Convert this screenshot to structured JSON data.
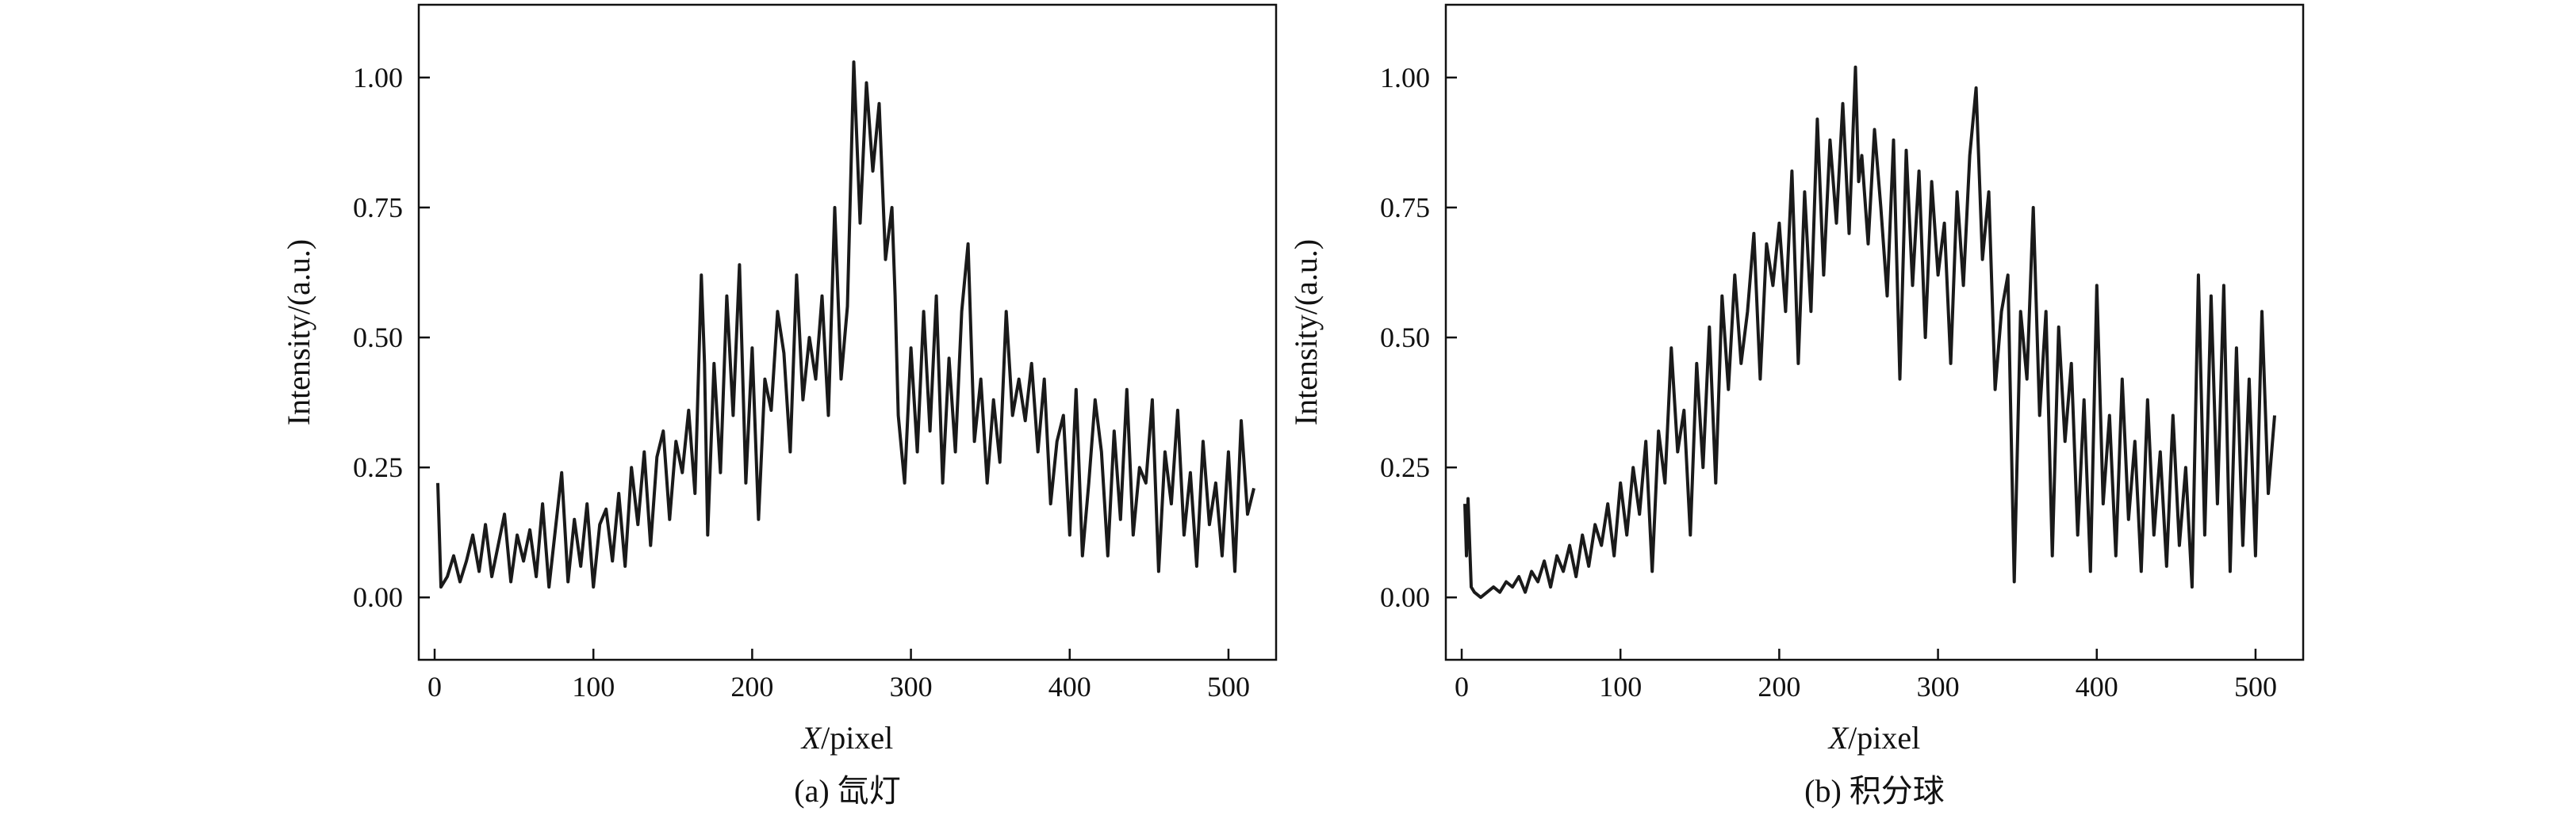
{
  "figure": {
    "panels": [
      "(a) 氙灯",
      "(b) 积分球"
    ]
  },
  "chart_data": [
    {
      "type": "line",
      "caption": "(a) 氙灯",
      "xlabel_italic": "X",
      "xlabel_rest": "/pixel",
      "ylabel": "Intensity/(a.u.)",
      "xlim": [
        -10,
        530
      ],
      "ylim": [
        -0.12,
        1.14
      ],
      "xticks": [
        0,
        100,
        200,
        300,
        400,
        500
      ],
      "yticks": [
        0.0,
        0.25,
        0.5,
        0.75,
        1.0
      ],
      "xtick_labels": [
        "0",
        "100",
        "200",
        "300",
        "400",
        "500"
      ],
      "ytick_labels": [
        "0.00",
        "0.25",
        "0.50",
        "0.75",
        "1.00"
      ],
      "grid": false,
      "series": [
        {
          "color": "#1a1a1a",
          "x": [
            2,
            4,
            8,
            12,
            16,
            20,
            24,
            28,
            32,
            36,
            40,
            44,
            48,
            52,
            56,
            60,
            64,
            68,
            72,
            76,
            80,
            84,
            88,
            92,
            96,
            100,
            104,
            108,
            112,
            116,
            120,
            124,
            128,
            132,
            136,
            140,
            144,
            148,
            152,
            156,
            160,
            164,
            168,
            170,
            172,
            176,
            180,
            184,
            188,
            192,
            196,
            200,
            204,
            208,
            212,
            216,
            220,
            224,
            228,
            232,
            236,
            240,
            244,
            248,
            252,
            256,
            260,
            264,
            268,
            272,
            276,
            280,
            284,
            288,
            290,
            292,
            296,
            300,
            304,
            308,
            312,
            316,
            320,
            324,
            328,
            332,
            336,
            340,
            344,
            348,
            352,
            356,
            360,
            364,
            368,
            372,
            376,
            380,
            384,
            388,
            392,
            396,
            400,
            404,
            408,
            412,
            416,
            420,
            424,
            428,
            432,
            436,
            440,
            444,
            448,
            452,
            456,
            460,
            464,
            468,
            472,
            476,
            480,
            484,
            488,
            492,
            496,
            500,
            504,
            508,
            512,
            516
          ],
          "y": [
            0.22,
            0.02,
            0.04,
            0.08,
            0.03,
            0.07,
            0.12,
            0.05,
            0.14,
            0.04,
            0.1,
            0.16,
            0.03,
            0.12,
            0.07,
            0.13,
            0.04,
            0.18,
            0.02,
            0.13,
            0.24,
            0.03,
            0.15,
            0.06,
            0.18,
            0.02,
            0.14,
            0.17,
            0.07,
            0.2,
            0.06,
            0.25,
            0.14,
            0.28,
            0.1,
            0.27,
            0.32,
            0.15,
            0.3,
            0.24,
            0.36,
            0.2,
            0.62,
            0.45,
            0.12,
            0.45,
            0.24,
            0.58,
            0.35,
            0.64,
            0.22,
            0.48,
            0.15,
            0.42,
            0.36,
            0.55,
            0.47,
            0.28,
            0.62,
            0.38,
            0.5,
            0.42,
            0.58,
            0.35,
            0.75,
            0.42,
            0.56,
            1.03,
            0.72,
            0.99,
            0.82,
            0.95,
            0.65,
            0.75,
            0.58,
            0.35,
            0.22,
            0.48,
            0.28,
            0.55,
            0.32,
            0.58,
            0.22,
            0.46,
            0.28,
            0.55,
            0.68,
            0.3,
            0.42,
            0.22,
            0.38,
            0.26,
            0.55,
            0.35,
            0.42,
            0.34,
            0.45,
            0.28,
            0.42,
            0.18,
            0.3,
            0.35,
            0.12,
            0.4,
            0.08,
            0.22,
            0.38,
            0.28,
            0.08,
            0.32,
            0.15,
            0.4,
            0.12,
            0.25,
            0.22,
            0.38,
            0.05,
            0.28,
            0.18,
            0.36,
            0.12,
            0.24,
            0.06,
            0.3,
            0.14,
            0.22,
            0.08,
            0.28,
            0.05,
            0.34,
            0.16,
            0.21
          ]
        }
      ]
    },
    {
      "type": "line",
      "caption": "(b) 积分球",
      "xlabel_italic": "X",
      "xlabel_rest": "/pixel",
      "ylabel": "Intensity/(a.u.)",
      "xlim": [
        -10,
        530
      ],
      "ylim": [
        -0.12,
        1.14
      ],
      "xticks": [
        0,
        100,
        200,
        300,
        400,
        500
      ],
      "yticks": [
        0.0,
        0.25,
        0.5,
        0.75,
        1.0
      ],
      "xtick_labels": [
        "0",
        "100",
        "200",
        "300",
        "400",
        "500"
      ],
      "ytick_labels": [
        "0.00",
        "0.25",
        "0.50",
        "0.75",
        "1.00"
      ],
      "grid": false,
      "series": [
        {
          "color": "#1a1a1a",
          "x": [
            2,
            3,
            4,
            6,
            8,
            12,
            16,
            20,
            24,
            28,
            32,
            36,
            40,
            44,
            48,
            52,
            56,
            60,
            64,
            68,
            72,
            76,
            80,
            84,
            88,
            92,
            96,
            100,
            104,
            108,
            112,
            116,
            120,
            124,
            128,
            132,
            136,
            140,
            144,
            148,
            152,
            156,
            160,
            164,
            168,
            172,
            176,
            180,
            184,
            188,
            192,
            196,
            200,
            204,
            208,
            212,
            216,
            220,
            224,
            228,
            232,
            236,
            240,
            244,
            248,
            250,
            252,
            256,
            260,
            264,
            268,
            272,
            276,
            280,
            284,
            288,
            292,
            296,
            300,
            304,
            308,
            312,
            316,
            320,
            324,
            328,
            332,
            336,
            340,
            344,
            348,
            352,
            356,
            360,
            364,
            368,
            372,
            376,
            380,
            384,
            388,
            392,
            396,
            400,
            404,
            408,
            412,
            416,
            420,
            424,
            428,
            432,
            436,
            440,
            444,
            448,
            452,
            456,
            460,
            464,
            468,
            472,
            476,
            480,
            484,
            488,
            492,
            496,
            500,
            504,
            508,
            512
          ],
          "y": [
            0.18,
            0.08,
            0.19,
            0.02,
            0.01,
            0.0,
            0.01,
            0.02,
            0.01,
            0.03,
            0.02,
            0.04,
            0.01,
            0.05,
            0.03,
            0.07,
            0.02,
            0.08,
            0.05,
            0.1,
            0.04,
            0.12,
            0.06,
            0.14,
            0.1,
            0.18,
            0.08,
            0.22,
            0.12,
            0.25,
            0.16,
            0.3,
            0.05,
            0.32,
            0.22,
            0.48,
            0.28,
            0.36,
            0.12,
            0.45,
            0.25,
            0.52,
            0.22,
            0.58,
            0.4,
            0.62,
            0.45,
            0.55,
            0.7,
            0.42,
            0.68,
            0.6,
            0.72,
            0.55,
            0.82,
            0.45,
            0.78,
            0.55,
            0.92,
            0.62,
            0.88,
            0.72,
            0.95,
            0.7,
            1.02,
            0.8,
            0.85,
            0.68,
            0.9,
            0.75,
            0.58,
            0.88,
            0.42,
            0.86,
            0.6,
            0.82,
            0.5,
            0.8,
            0.62,
            0.72,
            0.45,
            0.78,
            0.6,
            0.85,
            0.98,
            0.65,
            0.78,
            0.4,
            0.55,
            0.62,
            0.03,
            0.55,
            0.42,
            0.75,
            0.35,
            0.55,
            0.08,
            0.52,
            0.3,
            0.45,
            0.12,
            0.38,
            0.05,
            0.6,
            0.18,
            0.35,
            0.08,
            0.42,
            0.15,
            0.3,
            0.05,
            0.38,
            0.12,
            0.28,
            0.06,
            0.35,
            0.1,
            0.25,
            0.02,
            0.62,
            0.12,
            0.58,
            0.18,
            0.6,
            0.05,
            0.48,
            0.1,
            0.42,
            0.08,
            0.55,
            0.2,
            0.35
          ]
        }
      ]
    }
  ]
}
